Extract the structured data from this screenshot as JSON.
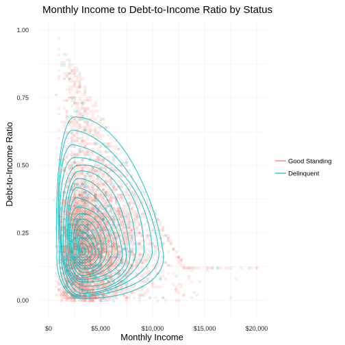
{
  "chart_data": {
    "type": "scatter",
    "title": "Monthly Income to Debt-to-Income Ratio by Status",
    "xlabel": "Monthly Income",
    "ylabel": "Debt-to-Income Ratio",
    "xlim": [
      -1000,
      20700
    ],
    "ylim": [
      -0.05,
      1.02
    ],
    "x_ticks": [
      0,
      5000,
      10000,
      15000,
      20000
    ],
    "x_tick_labels": [
      "$0",
      "$5,000",
      "$10,000",
      "$15,000",
      "$20,000"
    ],
    "y_ticks": [
      0,
      0.25,
      0.5,
      0.75,
      1.0
    ],
    "y_tick_labels": [
      "0.00",
      "0.25",
      "0.50",
      "0.75",
      "1.00"
    ],
    "grid": true,
    "legend_position": "right",
    "series": [
      {
        "name": "Good Standing",
        "color": "#F8766D",
        "geom": "points",
        "approx_density": {
          "x_range": [
            0,
            20000
          ],
          "y_range": [
            0,
            1.0
          ],
          "mode": [
            3500,
            0.18
          ]
        }
      },
      {
        "name": "Delinquent",
        "color": "#00BFC4",
        "geom": "points + density contours",
        "contour_extent": {
          "x_range": [
            800,
            11000
          ],
          "y_range": [
            0,
            0.66
          ],
          "peak": [
            3300,
            0.18
          ]
        }
      }
    ]
  }
}
